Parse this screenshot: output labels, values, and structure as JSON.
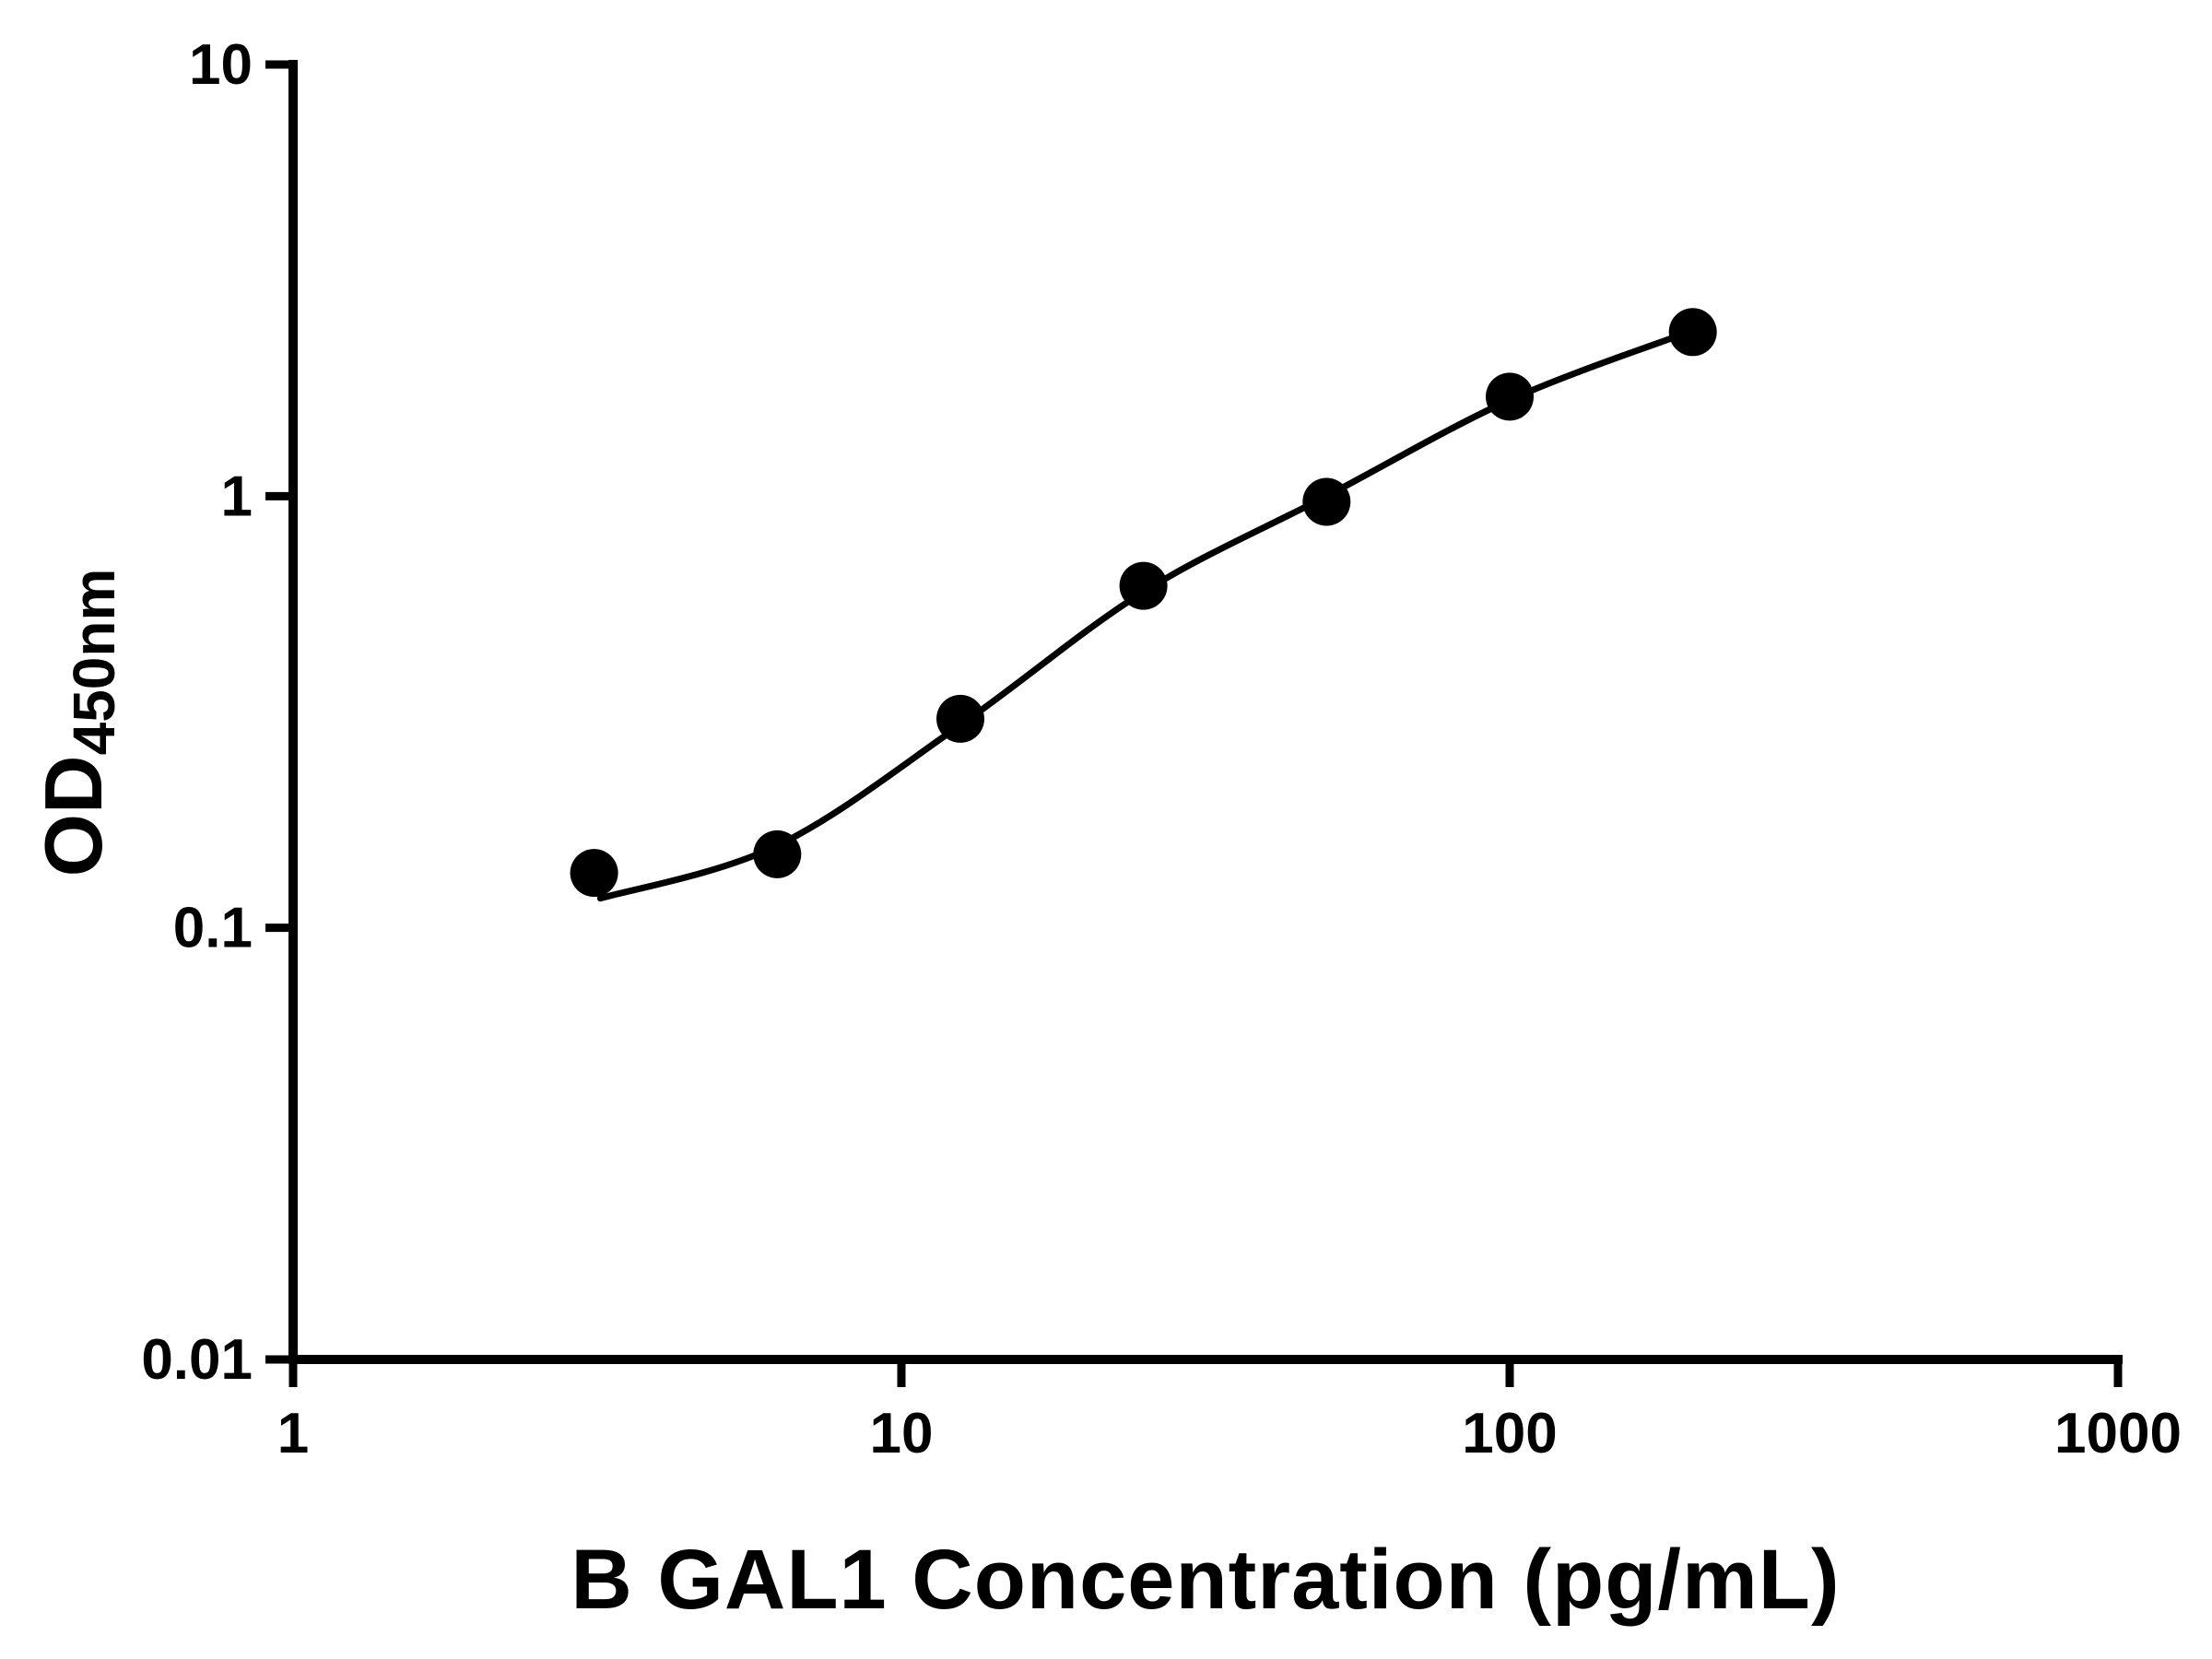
{
  "chart_data": {
    "type": "scatter",
    "title": "",
    "xlabel": "B GAL1 Concentration (pg/mL)",
    "ylabel_main": "OD",
    "ylabel_sub": "450nm",
    "x_scale": "log",
    "y_scale": "log",
    "xlim": [
      1,
      1000
    ],
    "ylim": [
      0.01,
      10
    ],
    "x_ticks": [
      "1",
      "10",
      "100",
      "1000"
    ],
    "y_ticks": [
      "0.01",
      "0.1",
      "1",
      "10"
    ],
    "grid": "off",
    "legend": "none",
    "marker_color": "#000000",
    "line_color": "#000000",
    "points": [
      {
        "x": 3.125,
        "y": 0.134
      },
      {
        "x": 6.25,
        "y": 0.148
      },
      {
        "x": 12.5,
        "y": 0.305
      },
      {
        "x": 25,
        "y": 0.62
      },
      {
        "x": 50,
        "y": 0.97
      },
      {
        "x": 100,
        "y": 1.7
      },
      {
        "x": 200,
        "y": 2.4
      }
    ],
    "fit_curve": [
      {
        "x": 3.2,
        "y": 0.117
      },
      {
        "x": 6.25,
        "y": 0.155
      },
      {
        "x": 12.5,
        "y": 0.295
      },
      {
        "x": 25,
        "y": 0.6
      },
      {
        "x": 50,
        "y": 1.0
      },
      {
        "x": 100,
        "y": 1.67
      },
      {
        "x": 200,
        "y": 2.42
      }
    ]
  }
}
